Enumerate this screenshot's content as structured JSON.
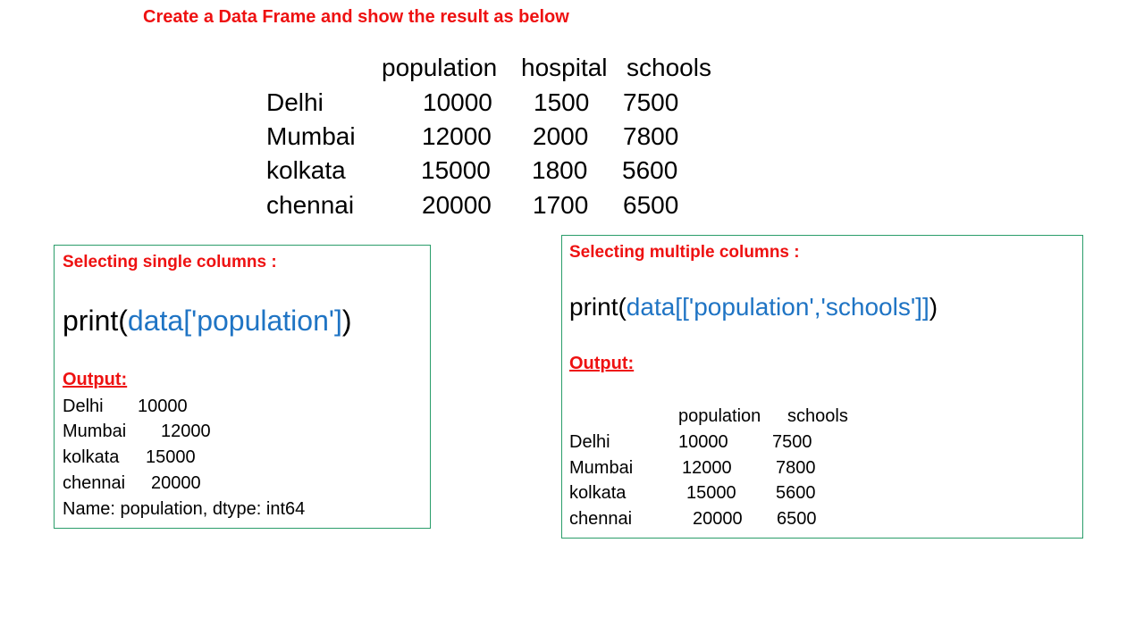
{
  "title": "Create a Data Frame and show the result as below",
  "dataframe": {
    "columns": [
      "population",
      "hospital",
      "schools"
    ],
    "rows": [
      {
        "index": "Delhi",
        "values": [
          "10000",
          "1500",
          "7500"
        ]
      },
      {
        "index": "Mumbai",
        "values": [
          "12000",
          "2000",
          "7800"
        ]
      },
      {
        "index": "kolkata",
        "values": [
          "15000",
          "1800",
          "5600"
        ]
      },
      {
        "index": "chennai",
        "values": [
          "20000",
          "1700",
          "6500"
        ]
      }
    ]
  },
  "single": {
    "heading": "Selecting single columns :",
    "code_fn": "print(",
    "code_arg": "data['population']",
    "code_close": ")",
    "output_label": "Output:",
    "output_rows": [
      {
        "label": "Delhi",
        "value": "10000"
      },
      {
        "label": "Mumbai",
        "value": "12000"
      },
      {
        "label": "kolkata",
        "value": "15000"
      },
      {
        "label": "chennai",
        "value": "20000"
      }
    ],
    "output_footer": "Name: population, dtype: int64"
  },
  "multiple": {
    "heading": "Selecting multiple columns :",
    "code_fn": "print(",
    "code_arg": "data[['population','schools']]",
    "code_close": ")",
    "output_label": "Output:",
    "output_columns": [
      "population",
      "schools"
    ],
    "output_rows": [
      {
        "label": "Delhi",
        "values": [
          "10000",
          "7500"
        ]
      },
      {
        "label": "Mumbai",
        "values": [
          "12000",
          "7800"
        ]
      },
      {
        "label": "kolkata",
        "values": [
          "15000",
          "5600"
        ]
      },
      {
        "label": "chennai",
        "values": [
          "20000",
          "6500"
        ]
      }
    ]
  }
}
